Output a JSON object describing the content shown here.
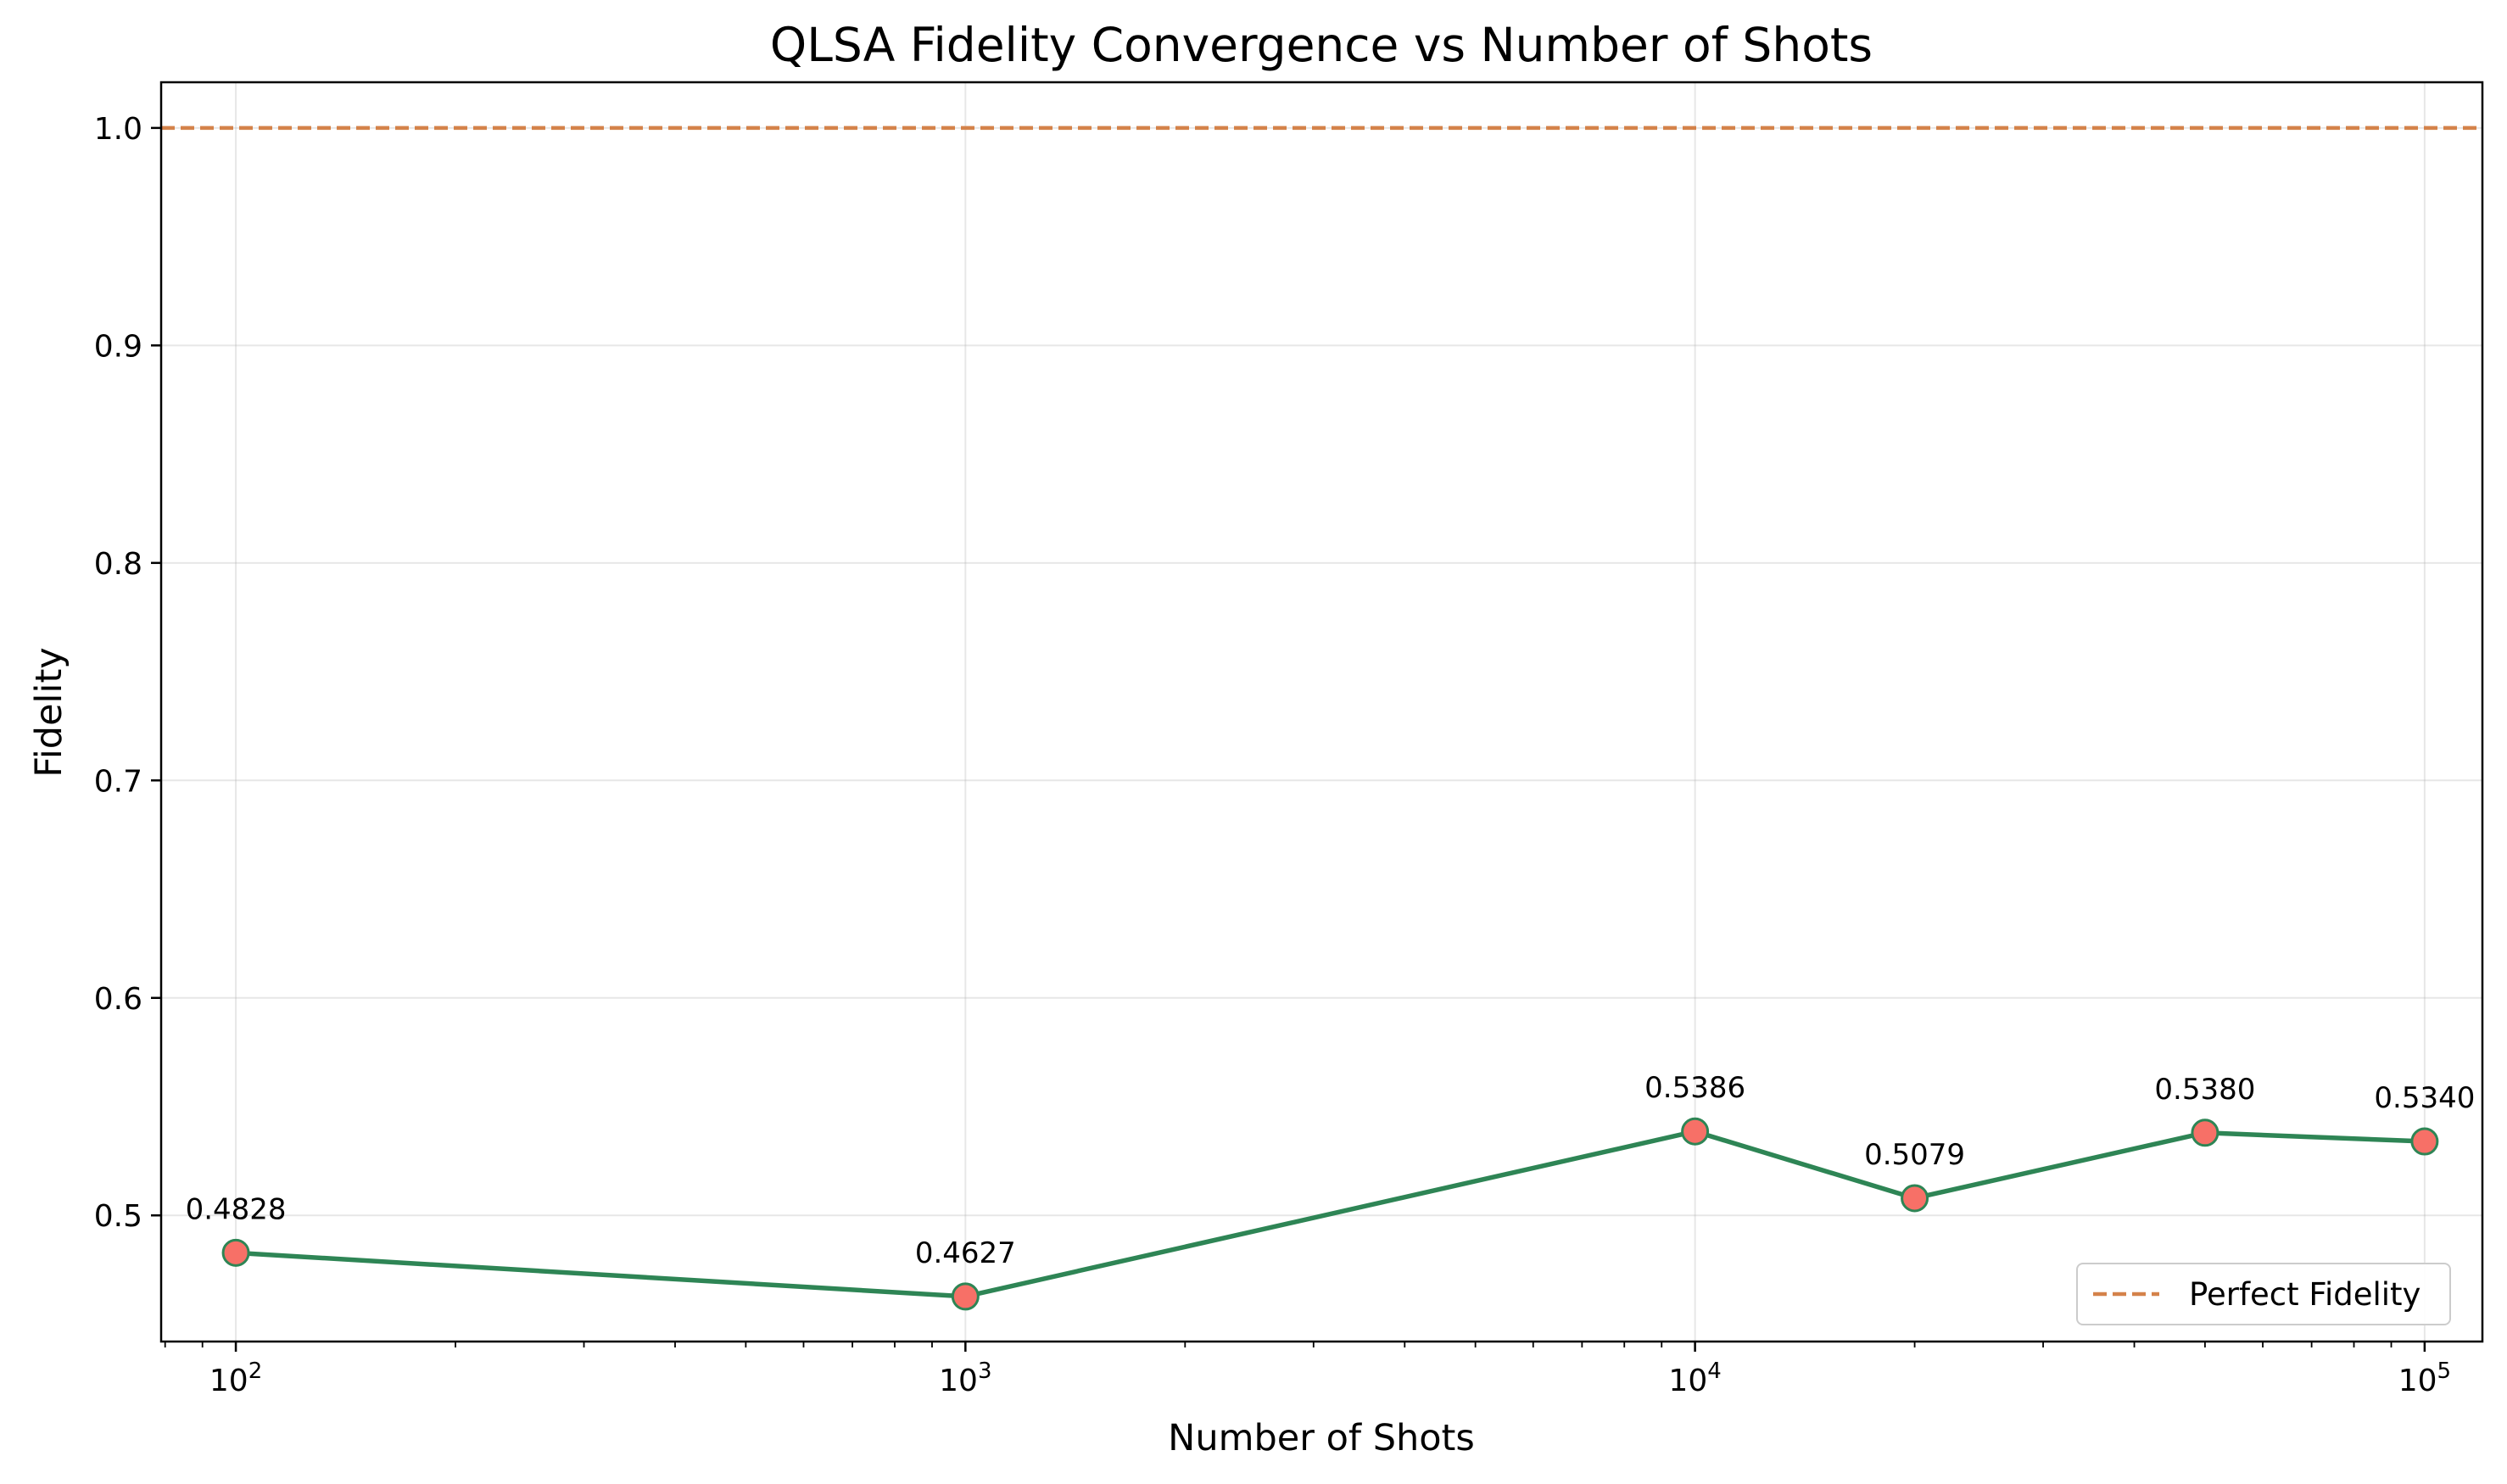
{
  "chart_data": {
    "type": "line",
    "title": "QLSA Fidelity Convergence vs Number of Shots",
    "xlabel": "Number of Shots",
    "ylabel": "Fidelity",
    "xscale": "log",
    "xlim": [
      79,
      120000
    ],
    "ylim": [
      0.442,
      1.021
    ],
    "x_ticks": [
      {
        "value": 100,
        "base": "10",
        "exp": "2"
      },
      {
        "value": 1000,
        "base": "10",
        "exp": "3"
      },
      {
        "value": 10000,
        "base": "10",
        "exp": "4"
      },
      {
        "value": 100000,
        "base": "10",
        "exp": "5"
      }
    ],
    "y_ticks": [
      {
        "value": 0.5,
        "label": "0.5"
      },
      {
        "value": 0.6,
        "label": "0.6"
      },
      {
        "value": 0.7,
        "label": "0.7"
      },
      {
        "value": 0.8,
        "label": "0.8"
      },
      {
        "value": 0.9,
        "label": "0.9"
      },
      {
        "value": 1.0,
        "label": "1.0"
      }
    ],
    "grid": true,
    "series": [
      {
        "name": "Fidelity",
        "color": "#2e8555",
        "marker_color": "#f77067",
        "x": [
          100,
          1000,
          10000,
          20000,
          50000,
          100000
        ],
        "values": [
          0.4828,
          0.4627,
          0.5386,
          0.5079,
          0.538,
          0.534
        ],
        "labels": [
          "0.4828",
          "0.4627",
          "0.5386",
          "0.5079",
          "0.5380",
          "0.5340"
        ]
      }
    ],
    "reference_line": {
      "name": "Perfect Fidelity",
      "value": 1.0,
      "color": "#d4824a",
      "style": "dashed"
    },
    "legend": {
      "position": "bottom-right",
      "entries": [
        "Perfect Fidelity"
      ]
    }
  }
}
